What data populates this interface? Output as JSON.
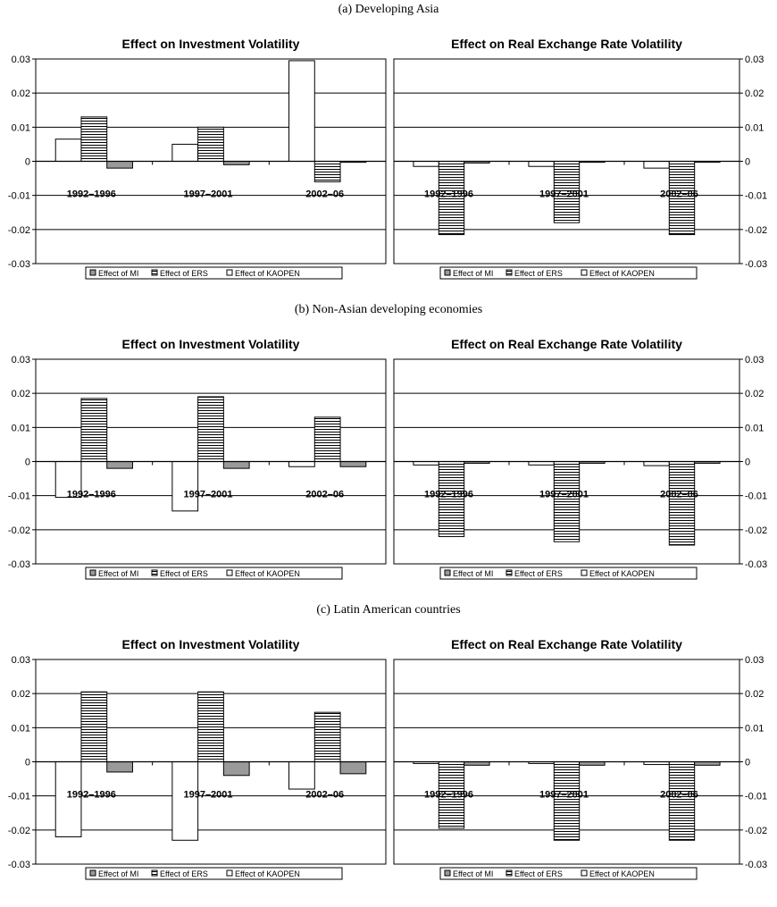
{
  "sections": [
    {
      "title": "(a) Developing Asia"
    },
    {
      "title": "(b) Non-Asian developing economies"
    },
    {
      "title": "(c) Latin American countries"
    }
  ],
  "legend_labels": [
    "Effect of MI",
    "Effect of ERS",
    "Effect of KAOPEN"
  ],
  "series_styles": {
    "Effect of MI": {
      "fill": "#9a9a9a",
      "pattern": "solid"
    },
    "Effect of ERS": {
      "fill": "#ffffff",
      "pattern": "horizontal-lines"
    },
    "Effect of KAOPEN": {
      "fill": "#ffffff",
      "pattern": "none"
    }
  },
  "chart_data": [
    {
      "type": "bar",
      "section": 0,
      "title": "Effect on Investment Volatility",
      "categories": [
        "1992–1996",
        "1997–2001",
        "2002–06"
      ],
      "ylim": [
        -0.03,
        0.03
      ],
      "yticks": [
        "0.03",
        "0.02",
        "0.01",
        "0",
        "-0.01",
        "-0.02",
        "-0.03"
      ],
      "y_axis_side": "left",
      "grid": true,
      "legend_position": "bottom",
      "series": [
        {
          "name": "Effect of KAOPEN",
          "values": [
            0.0065,
            0.005,
            0.0295
          ]
        },
        {
          "name": "Effect of ERS",
          "values": [
            0.013,
            0.01,
            -0.006
          ]
        },
        {
          "name": "Effect of MI",
          "values": [
            -0.002,
            -0.001,
            -0.0003
          ]
        }
      ]
    },
    {
      "type": "bar",
      "section": 0,
      "title": "Effect on Real Exchange Rate Volatility",
      "categories": [
        "1992–1996",
        "1997–2001",
        "2002–06"
      ],
      "ylim": [
        -0.03,
        0.03
      ],
      "yticks": [
        "0.03",
        "0.02",
        "0.01",
        "0",
        "-0.01",
        "-0.02",
        "-0.03"
      ],
      "y_axis_side": "right",
      "grid": true,
      "legend_position": "bottom",
      "series": [
        {
          "name": "Effect of KAOPEN",
          "values": [
            -0.0015,
            -0.0015,
            -0.002
          ]
        },
        {
          "name": "Effect of ERS",
          "values": [
            -0.0215,
            -0.018,
            -0.0215
          ]
        },
        {
          "name": "Effect of MI",
          "values": [
            -0.0005,
            -0.0003,
            -0.0002
          ]
        }
      ]
    },
    {
      "type": "bar",
      "section": 1,
      "title": "Effect on Investment Volatility",
      "categories": [
        "1992–1996",
        "1997–2001",
        "2002–06"
      ],
      "ylim": [
        -0.03,
        0.03
      ],
      "yticks": [
        "0.03",
        "0.02",
        "0.01",
        "0",
        "-0.01",
        "-0.02",
        "-0.03"
      ],
      "y_axis_side": "left",
      "grid": true,
      "legend_position": "bottom",
      "series": [
        {
          "name": "Effect of KAOPEN",
          "values": [
            -0.0105,
            -0.0145,
            -0.0015
          ]
        },
        {
          "name": "Effect of ERS",
          "values": [
            0.0185,
            0.019,
            0.013
          ]
        },
        {
          "name": "Effect of MI",
          "values": [
            -0.002,
            -0.002,
            -0.0015
          ]
        }
      ]
    },
    {
      "type": "bar",
      "section": 1,
      "title": "Effect on Real Exchange Rate Volatility",
      "categories": [
        "1992–1996",
        "1997–2001",
        "2002–06"
      ],
      "ylim": [
        -0.03,
        0.03
      ],
      "yticks": [
        "0.03",
        "0.02",
        "0.01",
        "0",
        "-0.01",
        "-0.02",
        "-0.03"
      ],
      "y_axis_side": "right",
      "grid": true,
      "legend_position": "bottom",
      "series": [
        {
          "name": "Effect of KAOPEN",
          "values": [
            -0.001,
            -0.001,
            -0.0012
          ]
        },
        {
          "name": "Effect of ERS",
          "values": [
            -0.022,
            -0.0235,
            -0.0245
          ]
        },
        {
          "name": "Effect of MI",
          "values": [
            -0.0005,
            -0.0005,
            -0.0005
          ]
        }
      ]
    },
    {
      "type": "bar",
      "section": 2,
      "title": "Effect on Investment Volatility",
      "categories": [
        "1992–1996",
        "1997–2001",
        "2002–06"
      ],
      "ylim": [
        -0.03,
        0.03
      ],
      "yticks": [
        "0.03",
        "0.02",
        "0.01",
        "0",
        "-0.01",
        "-0.02",
        "-0.03"
      ],
      "y_axis_side": "left",
      "grid": true,
      "legend_position": "bottom",
      "series": [
        {
          "name": "Effect of KAOPEN",
          "values": [
            -0.022,
            -0.023,
            -0.008
          ]
        },
        {
          "name": "Effect of ERS",
          "values": [
            0.0205,
            0.0205,
            0.0145
          ]
        },
        {
          "name": "Effect of MI",
          "values": [
            -0.003,
            -0.004,
            -0.0035
          ]
        }
      ]
    },
    {
      "type": "bar",
      "section": 2,
      "title": "Effect on Real Exchange Rate Volatility",
      "categories": [
        "1992–1996",
        "1997–2001",
        "2002–06"
      ],
      "ylim": [
        -0.03,
        0.03
      ],
      "yticks": [
        "0.03",
        "0.02",
        "0.01",
        "0",
        "-0.01",
        "-0.02",
        "-0.03"
      ],
      "y_axis_side": "right",
      "grid": true,
      "legend_position": "bottom",
      "series": [
        {
          "name": "Effect of KAOPEN",
          "values": [
            -0.0005,
            -0.0005,
            -0.0008
          ]
        },
        {
          "name": "Effect of ERS",
          "values": [
            -0.0195,
            -0.023,
            -0.023
          ]
        },
        {
          "name": "Effect of MI",
          "values": [
            -0.001,
            -0.001,
            -0.001
          ]
        }
      ]
    }
  ]
}
